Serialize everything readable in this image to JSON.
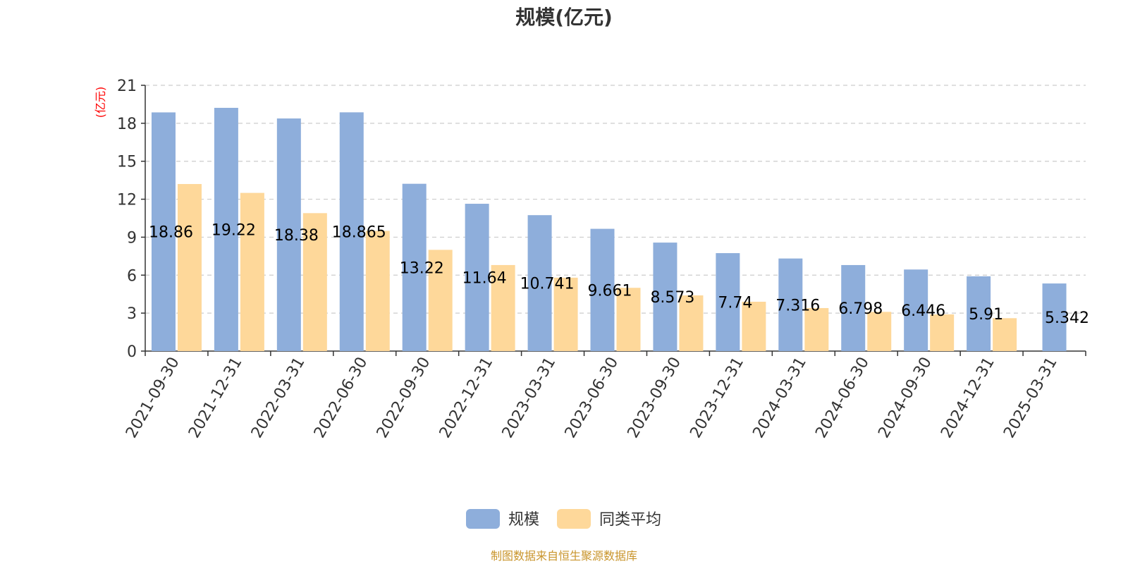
{
  "chart_data": {
    "type": "bar",
    "title": "规模(亿元)",
    "y_unit_label": "(亿元)",
    "categories": [
      "2021-09-30",
      "2021-12-31",
      "2022-03-31",
      "2022-06-30",
      "2022-09-30",
      "2022-12-31",
      "2023-03-31",
      "2023-06-30",
      "2023-09-30",
      "2023-12-31",
      "2024-03-31",
      "2024-06-30",
      "2024-09-30",
      "2024-12-31",
      "2025-03-31"
    ],
    "series": [
      {
        "name": "规模",
        "color": "#8eaedb",
        "values": [
          18.86,
          19.22,
          18.38,
          18.865,
          13.22,
          11.64,
          10.741,
          9.661,
          8.573,
          7.74,
          7.316,
          6.798,
          6.446,
          5.91,
          5.342
        ],
        "labels": [
          "18.86",
          "19.22",
          "18.38",
          "18.865",
          "13.22",
          "11.64",
          "10.741",
          "9.661",
          "8.573",
          "7.74",
          "7.316",
          "6.798",
          "6.446",
          "5.91",
          "5.342"
        ]
      },
      {
        "name": "同类平均",
        "color": "#fed89a",
        "values": [
          13.2,
          12.5,
          10.9,
          9.5,
          8.0,
          6.8,
          5.8,
          5.0,
          4.4,
          3.9,
          3.4,
          3.1,
          2.9,
          2.6,
          null
        ]
      }
    ],
    "ylim": [
      0,
      21
    ],
    "yticks": [
      0,
      3,
      6,
      9,
      12,
      15,
      18,
      21
    ],
    "grid": true,
    "legend_position": "bottom-center"
  },
  "source_note": "制图数据来自恒生聚源数据库"
}
